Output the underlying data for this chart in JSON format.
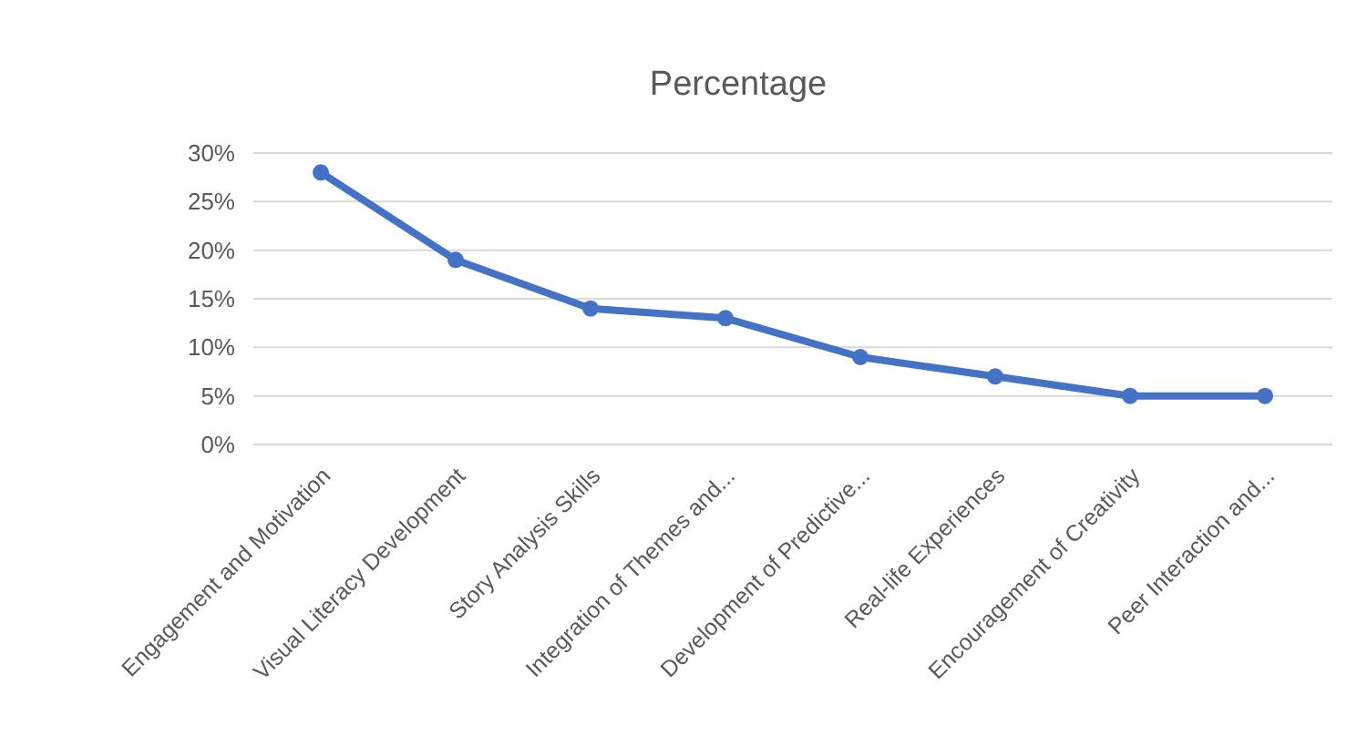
{
  "chart_data": {
    "type": "line",
    "title": "Percentage",
    "categories": [
      "Engagement and Motivation",
      "Visual Literacy Development",
      "Story Analysis Skills",
      "Integration of Themes and...",
      "Development of Predictive...",
      "Real-life Experiences",
      "Encouragement of Creativity",
      "Peer Interaction and..."
    ],
    "series": [
      {
        "color": "#4472c4",
        "values": [
          28,
          19,
          14,
          13,
          9,
          7,
          5,
          5
        ]
      }
    ],
    "ylim": [
      0,
      30
    ],
    "yticks": [
      {
        "value": 0,
        "label": "0%"
      },
      {
        "value": 5,
        "label": "5%"
      },
      {
        "value": 10,
        "label": "10%"
      },
      {
        "value": 15,
        "label": "15%"
      },
      {
        "value": 20,
        "label": "20%"
      },
      {
        "value": 25,
        "label": "25%"
      },
      {
        "value": 30,
        "label": "30%"
      }
    ],
    "grid": "y",
    "marker": "circle",
    "line_style": "solid"
  }
}
